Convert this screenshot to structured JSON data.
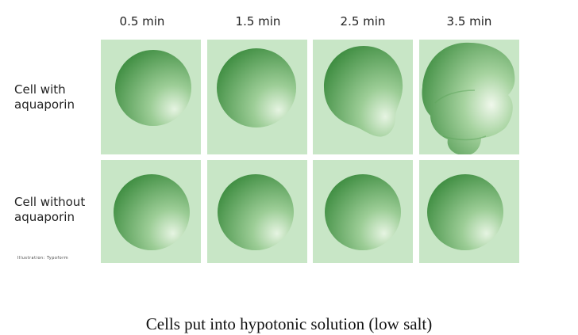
{
  "columns": [
    "0.5 min",
    "1.5 min",
    "2.5 min",
    "3.5 min"
  ],
  "rows": [
    {
      "label_line1": "Cell with",
      "label_line2": "aquaporin"
    },
    {
      "label_line1": "Cell without",
      "label_line2": "aquaporin"
    }
  ],
  "credit": "Illustration: Typoform",
  "caption": "Cells put into hypotonic solution (low salt)",
  "colors": {
    "panel_bg": "#c8e6c6",
    "cell_dark": "#3e8e41",
    "cell_light": "#e4f3e0"
  }
}
